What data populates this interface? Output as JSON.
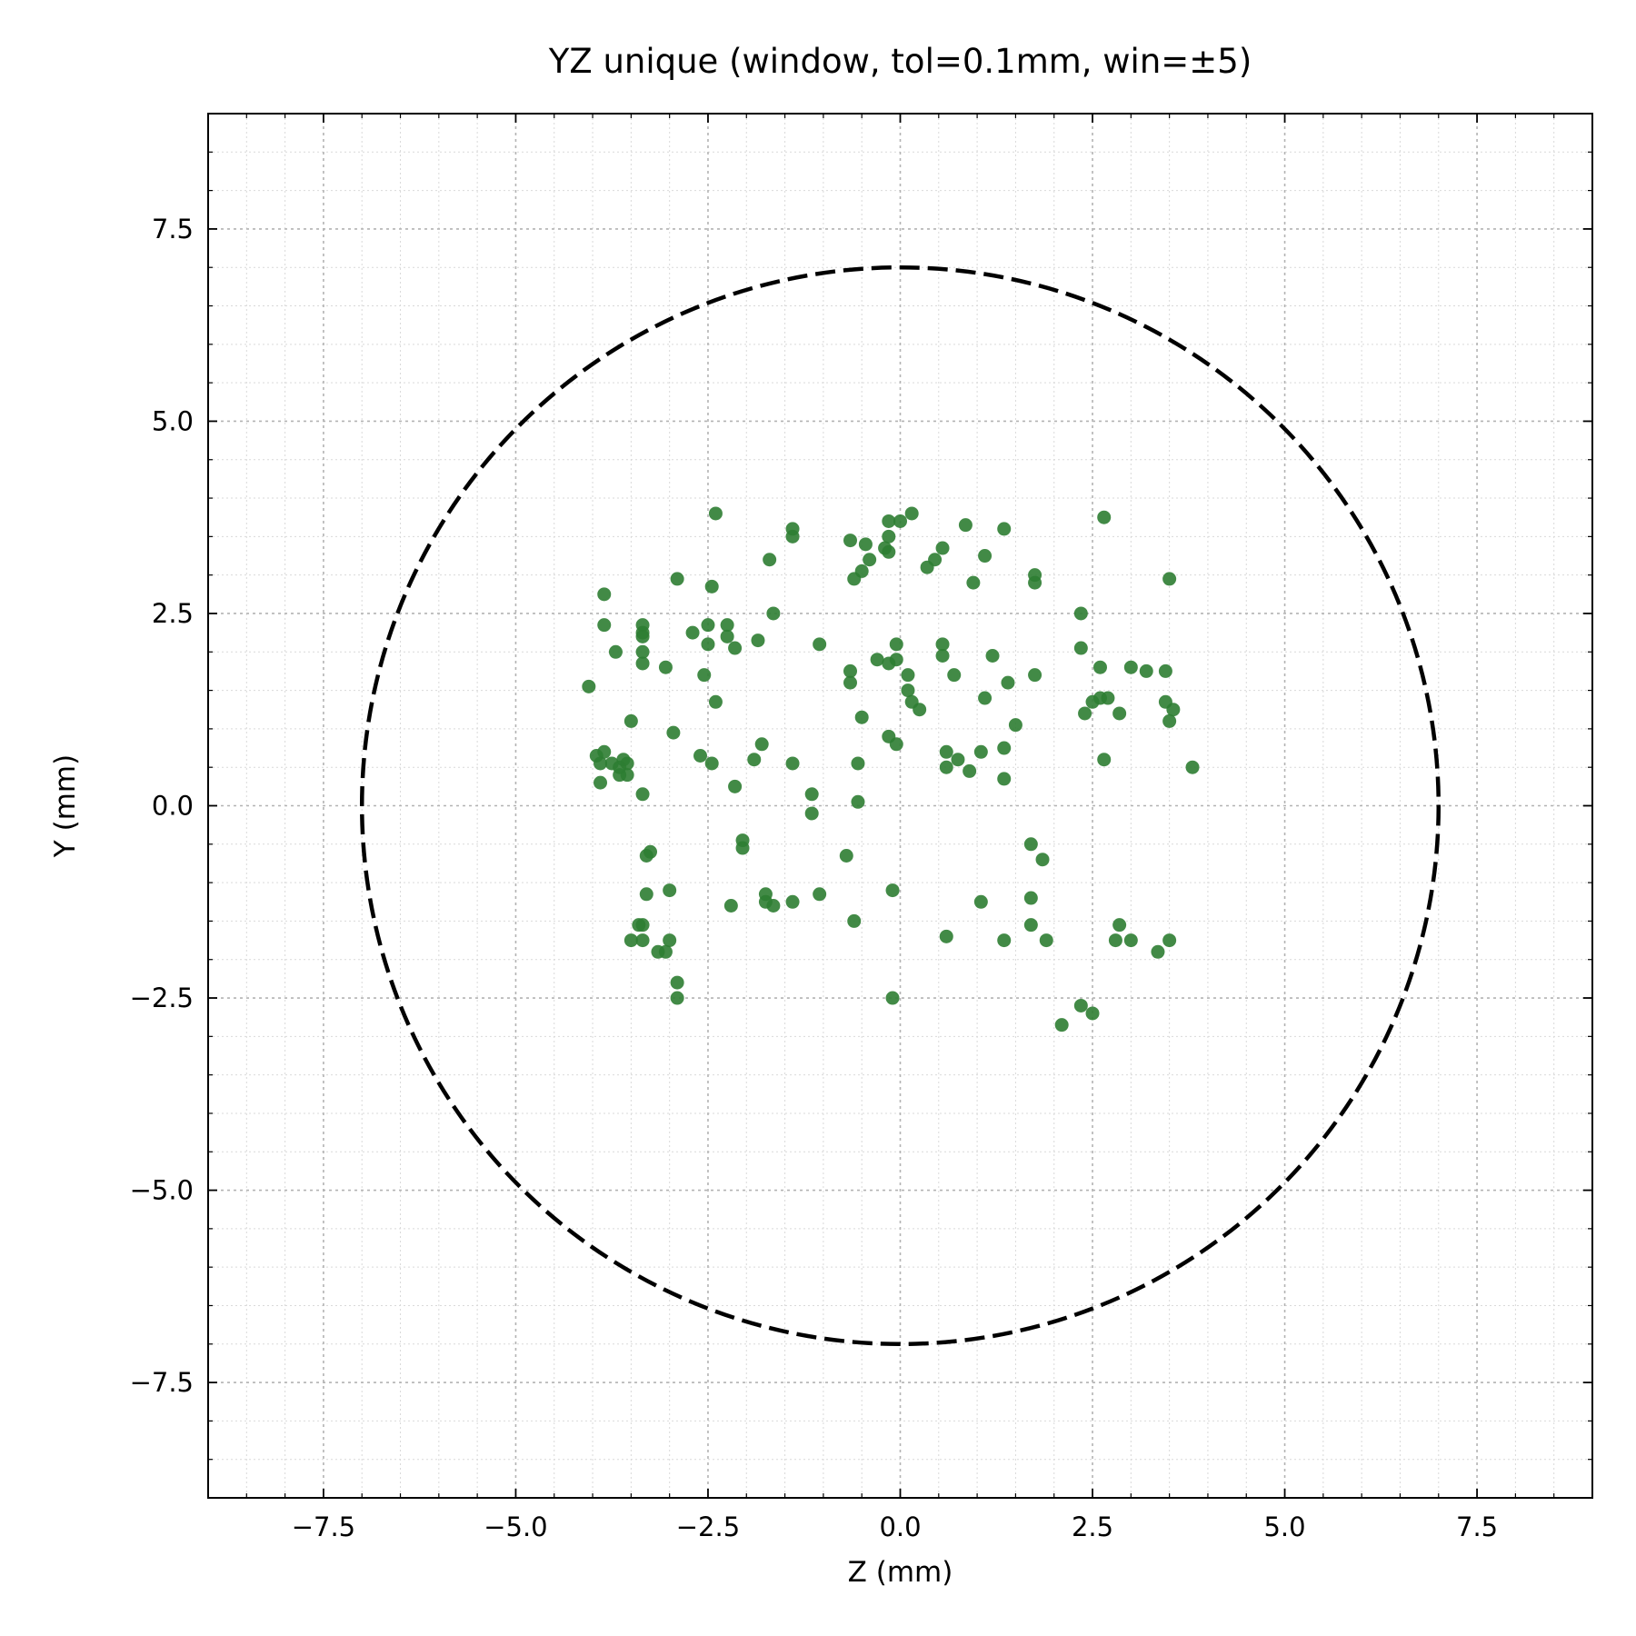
{
  "chart_data": {
    "type": "scatter",
    "title": "YZ unique (window, tol=0.1mm, win=±5)",
    "xlabel": "Z (mm)",
    "ylabel": "Y (mm)",
    "xlim": [
      -9,
      9
    ],
    "ylim": [
      -9,
      9
    ],
    "xticks": [
      -7.5,
      -5.0,
      -2.5,
      0.0,
      2.5,
      5.0,
      7.5
    ],
    "yticks": [
      -7.5,
      -5.0,
      -2.5,
      0.0,
      2.5,
      5.0,
      7.5
    ],
    "xtick_labels": [
      "−7.5",
      "−5.0",
      "−2.5",
      "0.0",
      "2.5",
      "5.0",
      "7.5"
    ],
    "ytick_labels": [
      "−7.5",
      "−5.0",
      "−2.5",
      "0.0",
      "2.5",
      "5.0",
      "7.5"
    ],
    "grid": true,
    "minor_grid": true,
    "circle": {
      "radius": 7.0,
      "style": "dashed",
      "color": "#000000"
    },
    "point_color": "#2e7d32",
    "points": [
      [
        -2.4,
        3.8
      ],
      [
        -1.4,
        3.6
      ],
      [
        -1.4,
        3.5
      ],
      [
        -0.65,
        3.45
      ],
      [
        -0.45,
        3.4
      ],
      [
        -0.15,
        3.7
      ],
      [
        0.0,
        3.7
      ],
      [
        0.15,
        3.8
      ],
      [
        -0.15,
        3.5
      ],
      [
        -0.2,
        3.35
      ],
      [
        -0.15,
        3.3
      ],
      [
        0.85,
        3.65
      ],
      [
        1.35,
        3.6
      ],
      [
        2.65,
        3.75
      ],
      [
        0.55,
        3.35
      ],
      [
        0.45,
        3.2
      ],
      [
        1.1,
        3.25
      ],
      [
        0.35,
        3.1
      ],
      [
        -0.4,
        3.2
      ],
      [
        -0.5,
        3.05
      ],
      [
        -0.6,
        2.95
      ],
      [
        -1.7,
        3.2
      ],
      [
        -2.9,
        2.95
      ],
      [
        -2.45,
        2.85
      ],
      [
        0.95,
        2.9
      ],
      [
        1.75,
        3.0
      ],
      [
        1.75,
        2.9
      ],
      [
        3.5,
        2.95
      ],
      [
        -3.85,
        2.75
      ],
      [
        -3.85,
        2.35
      ],
      [
        -3.35,
        2.35
      ],
      [
        -3.35,
        2.2
      ],
      [
        -3.35,
        2.25
      ],
      [
        -3.35,
        2.0
      ],
      [
        -3.7,
        2.0
      ],
      [
        -3.35,
        1.85
      ],
      [
        -3.05,
        1.8
      ],
      [
        -2.7,
        2.25
      ],
      [
        -2.5,
        2.35
      ],
      [
        -2.25,
        2.35
      ],
      [
        -2.25,
        2.2
      ],
      [
        -2.5,
        2.1
      ],
      [
        -2.15,
        2.05
      ],
      [
        -1.85,
        2.15
      ],
      [
        -1.65,
        2.5
      ],
      [
        -1.05,
        2.1
      ],
      [
        -0.05,
        2.1
      ],
      [
        0.55,
        2.1
      ],
      [
        0.55,
        1.95
      ],
      [
        2.35,
        2.5
      ],
      [
        2.35,
        2.05
      ],
      [
        1.2,
        1.95
      ],
      [
        -0.3,
        1.9
      ],
      [
        -0.15,
        1.85
      ],
      [
        -0.05,
        1.9
      ],
      [
        -0.65,
        1.75
      ],
      [
        -0.65,
        1.6
      ],
      [
        0.1,
        1.7
      ],
      [
        0.1,
        1.5
      ],
      [
        0.15,
        1.35
      ],
      [
        0.25,
        1.25
      ],
      [
        0.7,
        1.7
      ],
      [
        1.4,
        1.6
      ],
      [
        1.75,
        1.7
      ],
      [
        2.6,
        1.8
      ],
      [
        3.0,
        1.8
      ],
      [
        3.2,
        1.75
      ],
      [
        3.45,
        1.75
      ],
      [
        -4.05,
        1.55
      ],
      [
        -2.55,
        1.7
      ],
      [
        -2.4,
        1.35
      ],
      [
        1.1,
        1.4
      ],
      [
        2.5,
        1.35
      ],
      [
        2.6,
        1.4
      ],
      [
        2.7,
        1.4
      ],
      [
        2.4,
        1.2
      ],
      [
        2.85,
        1.2
      ],
      [
        3.45,
        1.35
      ],
      [
        3.55,
        1.25
      ],
      [
        3.5,
        1.1
      ],
      [
        -0.5,
        1.15
      ],
      [
        1.5,
        1.05
      ],
      [
        -3.5,
        1.1
      ],
      [
        -2.95,
        0.95
      ],
      [
        -1.8,
        0.8
      ],
      [
        -0.15,
        0.9
      ],
      [
        -0.05,
        0.8
      ],
      [
        -3.95,
        0.65
      ],
      [
        -3.85,
        0.7
      ],
      [
        -3.75,
        0.55
      ],
      [
        -3.9,
        0.55
      ],
      [
        -3.6,
        0.6
      ],
      [
        -3.55,
        0.55
      ],
      [
        -3.65,
        0.5
      ],
      [
        -3.65,
        0.4
      ],
      [
        -3.55,
        0.4
      ],
      [
        -3.9,
        0.3
      ],
      [
        -2.6,
        0.65
      ],
      [
        -2.45,
        0.55
      ],
      [
        -1.9,
        0.6
      ],
      [
        -1.4,
        0.55
      ],
      [
        -0.55,
        0.55
      ],
      [
        0.6,
        0.7
      ],
      [
        0.75,
        0.6
      ],
      [
        0.6,
        0.5
      ],
      [
        0.9,
        0.45
      ],
      [
        1.05,
        0.7
      ],
      [
        1.35,
        0.75
      ],
      [
        1.35,
        0.35
      ],
      [
        2.65,
        0.6
      ],
      [
        3.8,
        0.5
      ],
      [
        -3.35,
        0.15
      ],
      [
        -2.15,
        0.25
      ],
      [
        -1.15,
        0.15
      ],
      [
        -0.55,
        0.05
      ],
      [
        -1.15,
        -0.1
      ],
      [
        -2.05,
        -0.45
      ],
      [
        -2.05,
        -0.55
      ],
      [
        -3.25,
        -0.6
      ],
      [
        -3.3,
        -0.65
      ],
      [
        -0.7,
        -0.65
      ],
      [
        1.7,
        -0.5
      ],
      [
        1.85,
        -0.7
      ],
      [
        -3.0,
        -1.1
      ],
      [
        -3.3,
        -1.15
      ],
      [
        -1.75,
        -1.15
      ],
      [
        -1.75,
        -1.25
      ],
      [
        -1.65,
        -1.3
      ],
      [
        -1.4,
        -1.25
      ],
      [
        -1.05,
        -1.15
      ],
      [
        -0.1,
        -1.1
      ],
      [
        -2.2,
        -1.3
      ],
      [
        1.05,
        -1.25
      ],
      [
        1.7,
        -1.2
      ],
      [
        -3.4,
        -1.55
      ],
      [
        -3.35,
        -1.55
      ],
      [
        -0.6,
        -1.5
      ],
      [
        1.7,
        -1.55
      ],
      [
        2.85,
        -1.55
      ],
      [
        -3.5,
        -1.75
      ],
      [
        -3.35,
        -1.75
      ],
      [
        -3.0,
        -1.75
      ],
      [
        -3.15,
        -1.9
      ],
      [
        -3.05,
        -1.9
      ],
      [
        0.6,
        -1.7
      ],
      [
        1.35,
        -1.75
      ],
      [
        1.9,
        -1.75
      ],
      [
        2.8,
        -1.75
      ],
      [
        3.0,
        -1.75
      ],
      [
        3.35,
        -1.9
      ],
      [
        3.5,
        -1.75
      ],
      [
        -2.9,
        -2.3
      ],
      [
        -2.9,
        -2.5
      ],
      [
        -0.1,
        -2.5
      ],
      [
        2.35,
        -2.6
      ],
      [
        2.5,
        -2.7
      ],
      [
        2.1,
        -2.85
      ]
    ]
  }
}
